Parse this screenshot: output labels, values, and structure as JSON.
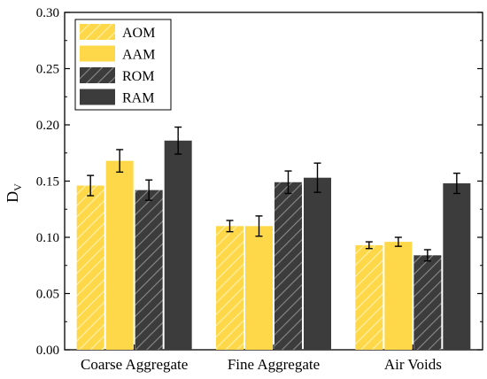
{
  "chart_data": {
    "type": "bar",
    "ylabel_main": "D",
    "ylabel_sub": "V",
    "xlabel": "",
    "ylim": [
      0,
      0.3
    ],
    "yticks": [
      "0.00",
      "0.05",
      "0.10",
      "0.15",
      "0.20",
      "0.25",
      "0.30"
    ],
    "categories": [
      "Coarse Aggregate",
      "Fine Aggregate",
      "Air Voids"
    ],
    "series": [
      {
        "name": "AOM",
        "values": [
          0.146,
          0.11,
          0.093
        ],
        "errors": [
          0.009,
          0.005,
          0.003
        ],
        "color": "#FFD84A",
        "hatch": true
      },
      {
        "name": "AAM",
        "values": [
          0.168,
          0.11,
          0.096
        ],
        "errors": [
          0.01,
          0.009,
          0.004
        ],
        "color": "#FFD84A",
        "hatch": false
      },
      {
        "name": "ROM",
        "values": [
          0.142,
          0.149,
          0.084
        ],
        "errors": [
          0.009,
          0.01,
          0.005
        ],
        "color": "#3C3C3C",
        "hatch": true
      },
      {
        "name": "RAM",
        "values": [
          0.186,
          0.153,
          0.148
        ],
        "errors": [
          0.012,
          0.013,
          0.009
        ],
        "color": "#3C3C3C",
        "hatch": false
      }
    ],
    "legend_position": "top-left",
    "grid": false
  }
}
